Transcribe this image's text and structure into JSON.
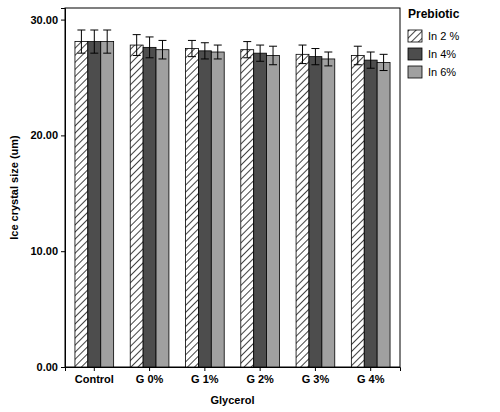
{
  "chart_data": {
    "type": "bar",
    "x_label": "Glycerol",
    "y_label": "Ice crystal size (um)",
    "legend_title": "Prebiotic",
    "legend": "right",
    "grid": false,
    "categories": [
      "Control",
      "G 0%",
      "G 1%",
      "G 2%",
      "G 3%",
      "G 4%"
    ],
    "series": [
      {
        "name": "In 2 %",
        "color": "#444444",
        "values": [
          28.1,
          27.8,
          27.5,
          27.4,
          27.0,
          26.9
        ],
        "errors": [
          1.0,
          0.9,
          0.7,
          0.7,
          0.8,
          0.8
        ]
      },
      {
        "name": "In 4%",
        "color": "#4d4d4d",
        "values": [
          28.1,
          27.6,
          27.3,
          27.1,
          26.8,
          26.5
        ],
        "errors": [
          1.0,
          0.9,
          0.7,
          0.7,
          0.7,
          0.7
        ]
      },
      {
        "name": "In 6%",
        "color": "#a0a0a0",
        "values": [
          28.1,
          27.4,
          27.2,
          26.9,
          26.6,
          26.3
        ],
        "errors": [
          1.0,
          0.8,
          0.6,
          0.8,
          0.6,
          0.7
        ]
      }
    ],
    "ylim": [
      0,
      31
    ],
    "yticks": [
      {
        "value": 0,
        "label": "0.00"
      },
      {
        "value": 10,
        "label": "10.00"
      },
      {
        "value": 20,
        "label": "20.00"
      },
      {
        "value": 30,
        "label": "30.00"
      }
    ]
  }
}
